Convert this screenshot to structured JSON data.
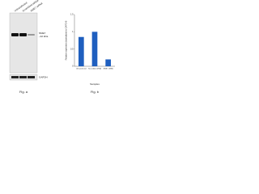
{
  "blot": {
    "lanes": [
      "Untransfected",
      "Scrambled siRNA",
      "NME7 siRNA"
    ],
    "target": "NME7",
    "size": "~42 kDa",
    "control": "GAPDH",
    "caption": "Fig. a"
  },
  "chart_data": {
    "type": "bar",
    "caption": "Fig. b",
    "ylabel": "Relative expression (normalized to GAPDH)",
    "xlabel": "Samples",
    "categories": [
      "Untransfected",
      "Scrambled siRNA",
      "NME7 siRNA"
    ],
    "values": [
      0.85,
      1.0,
      0.2
    ],
    "color": "#1f5fbf",
    "ylim": [
      0,
      1.5
    ],
    "yticks": [
      0,
      0.5,
      1,
      1.5
    ]
  }
}
